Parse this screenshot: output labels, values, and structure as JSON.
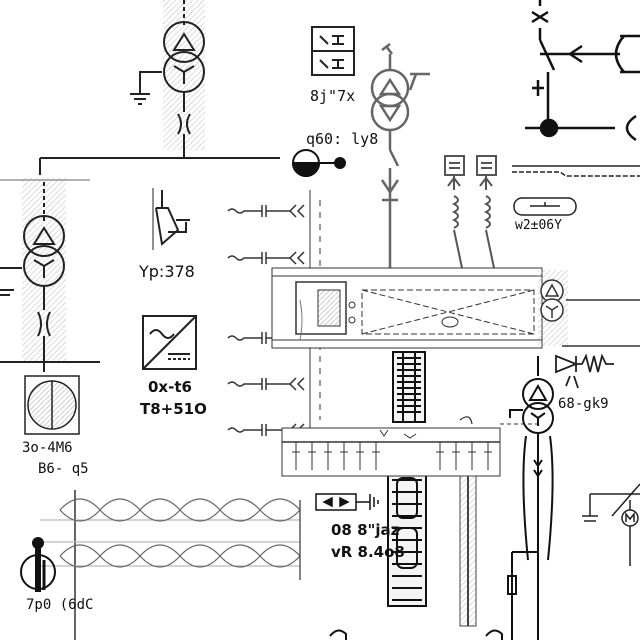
{
  "drawing": {
    "labels": {
      "top_switch_block": "8j\"7x",
      "breaker_ref": "q60: ly8",
      "cable_ref": "w2±06Y",
      "surge_arrester": "Yp:378",
      "inverter_line1": "0x-t6",
      "inverter_line2": "T8+51O",
      "diode_ref": "68-gk9",
      "motor_line1": "3o-4M6",
      "motor_line2": "B6- q5",
      "busbar_line1": "08 8\"jaz",
      "busbar_line2": "vR 8.4o8",
      "bottom_device": "7p0 (6dC"
    }
  }
}
